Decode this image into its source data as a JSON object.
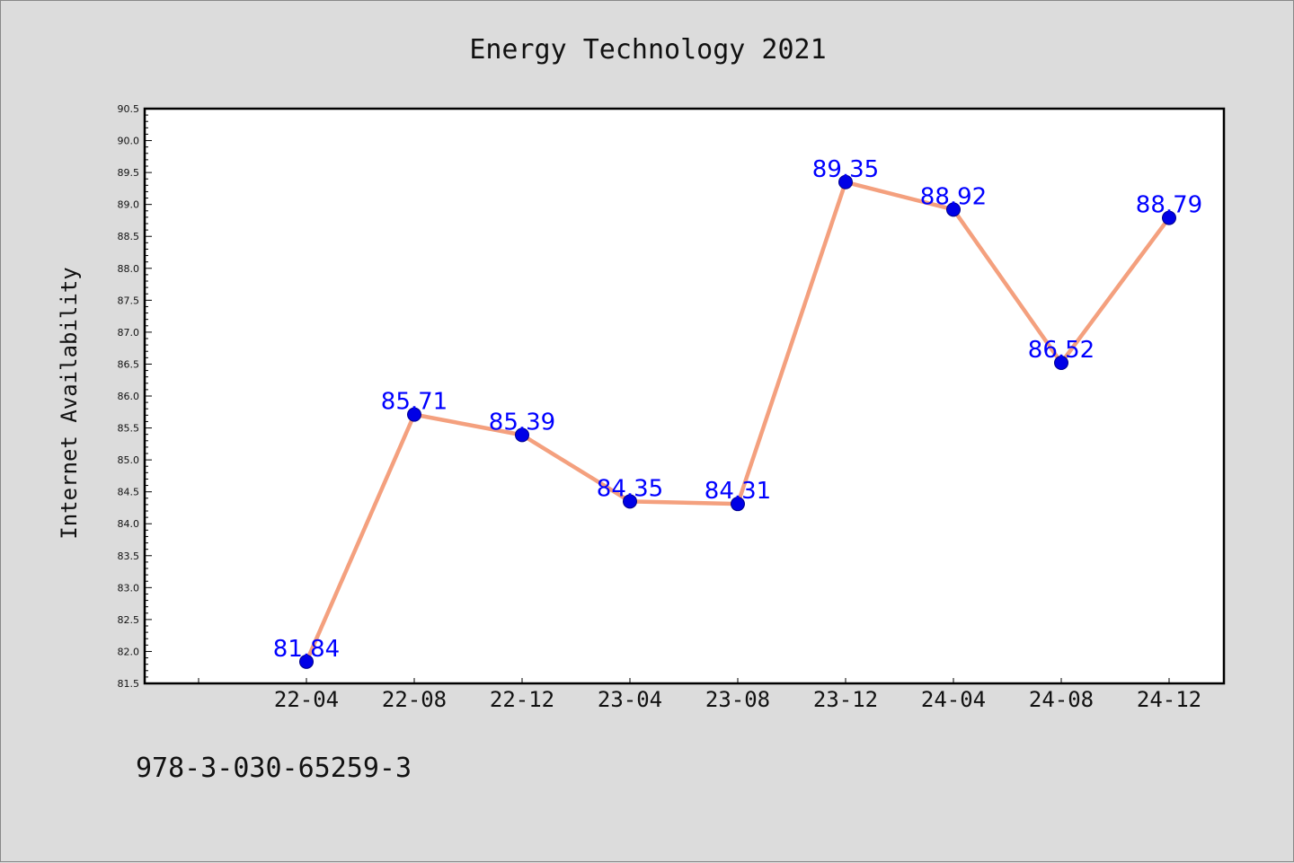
{
  "chart_data": {
    "type": "line",
    "title": "Energy Technology 2021",
    "xlabel": "",
    "ylabel": "Internet Availability",
    "categories": [
      "22-04",
      "22-08",
      "22-12",
      "23-04",
      "23-08",
      "23-12",
      "24-04",
      "24-08",
      "24-12"
    ],
    "series": [
      {
        "values": [
          81.84,
          85.71,
          85.39,
          84.35,
          84.31,
          89.35,
          88.92,
          86.52,
          88.79
        ],
        "labels": [
          "81.84",
          "85.71",
          "85.39",
          "84.35",
          "84.31",
          "89.35",
          "88.92",
          "86.52",
          "88.79"
        ]
      }
    ],
    "ylim": [
      81.5,
      90.5
    ],
    "yticks": [
      "81.5",
      "82.0",
      "82.5",
      "83.0",
      "83.5",
      "84.0",
      "84.5",
      "85.0",
      "85.5",
      "86.0",
      "86.5",
      "87.0",
      "87.5",
      "88.0",
      "88.5",
      "89.0",
      "89.5",
      "90.0",
      "90.5"
    ],
    "grid": false,
    "legend": "none",
    "colors": {
      "line": "#f4a07e",
      "marker": "#0000e6",
      "marker_edge": "#00008b",
      "label": "#0000ff",
      "plot_bg": "#ffffff",
      "figure_bg": "#dcdcdc"
    }
  },
  "footer": {
    "isbn": "978-3-030-65259-3"
  }
}
